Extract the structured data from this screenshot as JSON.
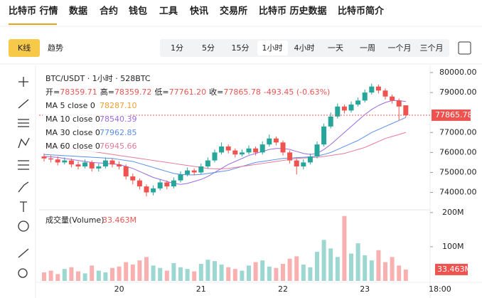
{
  "nav": {
    "items": [
      "比特币 行情",
      "数据",
      "合约",
      "钱包",
      "工具",
      "快讯",
      "交易所",
      "比特币 历史数据",
      "比特币简介"
    ]
  },
  "toolbar": {
    "tabs": [
      "K线",
      "趋势"
    ],
    "intervals": [
      "1分",
      "5分",
      "15分",
      "1小时",
      "4小时",
      "一天",
      "一周",
      "一个月",
      "三个月"
    ]
  },
  "chart_data": {
    "type": "candlestick",
    "title": "BTC/USDT · 1小时 · 528BTC",
    "ohlc_header": [
      {
        "label": "开=",
        "value": "78359.71"
      },
      {
        "label": "高=",
        "value": "78359.72"
      },
      {
        "label": "低=",
        "value": "77761.20"
      },
      {
        "label": "收=",
        "value": "77865.78"
      }
    ],
    "change": "-493.45 (-0.63%)",
    "categories": [
      null,
      null,
      null,
      null,
      null,
      null,
      null,
      null,
      null,
      null,
      null,
      "20",
      null,
      null,
      null,
      null,
      null,
      null,
      null,
      null,
      null,
      null,
      null,
      "21",
      null,
      null,
      null,
      null,
      null,
      null,
      null,
      null,
      null,
      null,
      null,
      "22",
      null,
      null,
      null,
      null,
      null,
      null,
      null,
      null,
      null,
      null,
      null,
      "23",
      null,
      null,
      null,
      null,
      null,
      null
    ],
    "time_label": "18:00",
    "open": [
      75800,
      75700,
      75650,
      75500,
      75600,
      75400,
      75300,
      75500,
      75200,
      75300,
      75600,
      75400,
      75300,
      74800,
      74600,
      74300,
      74000,
      74200,
      74500,
      74300,
      74600,
      74900,
      75100,
      75000,
      75300,
      75600,
      76000,
      76300,
      76100,
      75900,
      76000,
      76200,
      76000,
      76400,
      76700,
      76500,
      76000,
      75600,
      75300,
      75500,
      75800,
      76400,
      77300,
      77800,
      78300,
      78100,
      78400,
      78600,
      79000,
      79300,
      79100,
      78800,
      78600,
      78359.71
    ],
    "high": [
      75950,
      75850,
      75800,
      75750,
      75700,
      75550,
      75650,
      75600,
      75450,
      75750,
      75700,
      75550,
      75400,
      74950,
      74700,
      74400,
      74350,
      74650,
      74600,
      74750,
      75050,
      75250,
      75200,
      75450,
      75750,
      76150,
      76500,
      76400,
      76200,
      76150,
      76350,
      76300,
      76550,
      76900,
      76800,
      76600,
      76100,
      75700,
      75650,
      75950,
      76550,
      77450,
      78000,
      78450,
      78400,
      78550,
      78750,
      79150,
      79450,
      79400,
      79200,
      78900,
      78700,
      78359.72
    ],
    "low": [
      75550,
      75500,
      75350,
      75400,
      75250,
      75150,
      75200,
      75050,
      75050,
      75200,
      75250,
      75150,
      74650,
      74400,
      74150,
      73800,
      73850,
      74100,
      74150,
      74200,
      74500,
      74800,
      74850,
      74900,
      75200,
      75500,
      75900,
      75950,
      75750,
      75800,
      75900,
      75850,
      75900,
      76300,
      76350,
      75850,
      75450,
      74900,
      75150,
      75400,
      75700,
      76300,
      77200,
      77700,
      77950,
      78000,
      78300,
      78500,
      78900,
      78950,
      78650,
      78450,
      77600,
      77761.2
    ],
    "close": [
      75700,
      75650,
      75500,
      75600,
      75400,
      75300,
      75500,
      75200,
      75300,
      75600,
      75400,
      75300,
      74800,
      74600,
      74300,
      74000,
      74200,
      74500,
      74300,
      74600,
      74900,
      75100,
      75000,
      75300,
      75600,
      76000,
      76300,
      76100,
      75900,
      76000,
      76200,
      76000,
      76400,
      76700,
      76500,
      76000,
      75600,
      75300,
      75500,
      75800,
      76400,
      77300,
      77800,
      78300,
      78100,
      78400,
      78600,
      79000,
      79300,
      79100,
      78800,
      78600,
      78300,
      77865.78
    ],
    "up_color": "#26a69a",
    "down_color": "#ef5350",
    "last_price": {
      "value": 77865.78,
      "label": "77865.78"
    },
    "ylim": [
      73200,
      80250
    ],
    "yticks": [
      {
        "value": 80000,
        "label": "80000.00"
      },
      {
        "value": 79000,
        "label": "79000.00"
      },
      {
        "value": 77000,
        "label": "77000.00"
      },
      {
        "value": 76000,
        "label": "76000.00"
      },
      {
        "value": 75000,
        "label": "75000.00"
      },
      {
        "value": 74000,
        "label": "74000.00"
      }
    ],
    "ma": [
      {
        "name": "MA 5 close 0",
        "last": "78287.10",
        "color": "#f0a030",
        "values": null
      },
      {
        "name": "MA 10 close 0",
        "last": "78540.39",
        "color": "#9c6ade",
        "values": [
          75800,
          75780,
          75750,
          75700,
          75650,
          75600,
          75550,
          75500,
          75480,
          75450,
          75420,
          75400,
          75300,
          75200,
          75050,
          74900,
          74750,
          74650,
          74550,
          74450,
          74400,
          74450,
          74550,
          74650,
          74800,
          75000,
          75200,
          75400,
          75550,
          75700,
          75850,
          75950,
          76050,
          76150,
          76200,
          76200,
          76150,
          76050,
          75950,
          75900,
          75950,
          76150,
          76400,
          76700,
          77000,
          77300,
          77600,
          77900,
          78150,
          78350,
          78500,
          78600,
          78600,
          78550
        ]
      },
      {
        "name": "MA 30 close 0",
        "last": "77962.85",
        "color": "#5b8fe8",
        "values": [
          75900,
          75880,
          75860,
          75840,
          75820,
          75800,
          75780,
          75760,
          75740,
          75720,
          75700,
          75650,
          75600,
          75550,
          75450,
          75350,
          75250,
          75150,
          75050,
          74950,
          74900,
          74880,
          74880,
          74900,
          74950,
          75000,
          75050,
          75100,
          75200,
          75300,
          75400,
          75500,
          75550,
          75600,
          75650,
          75700,
          75720,
          75740,
          75760,
          75780,
          75820,
          75900,
          76000,
          76150,
          76300,
          76450,
          76600,
          76800,
          77000,
          77150,
          77300,
          77450,
          77600,
          77750
        ]
      },
      {
        "name": "MA 60 close 0",
        "last": "76945.66",
        "color": "#e57a9a",
        "values": [
          76300,
          76280,
          76250,
          76220,
          76200,
          76150,
          76100,
          76050,
          76000,
          75950,
          75900,
          75850,
          75800,
          75750,
          75700,
          75650,
          75600,
          75550,
          75500,
          75450,
          75400,
          75350,
          75300,
          75250,
          75200,
          75180,
          75180,
          75200,
          75250,
          75300,
          75350,
          75400,
          75450,
          75500,
          75550,
          75600,
          75650,
          75700,
          75720,
          75740,
          75760,
          75800,
          75850,
          75900,
          75950,
          76050,
          76150,
          76250,
          76400,
          76550,
          76700,
          76800,
          76900,
          77000
        ]
      }
    ],
    "volume": {
      "title": "成交量(Volume)",
      "last": {
        "value": 33.463,
        "label": "33.463M"
      },
      "values": [
        25,
        30,
        20,
        35,
        40,
        28,
        22,
        45,
        30,
        25,
        38,
        42,
        55,
        48,
        60,
        70,
        45,
        38,
        30,
        52,
        40,
        35,
        28,
        50,
        62,
        58,
        48,
        40,
        35,
        30,
        45,
        55,
        60,
        42,
        38,
        50,
        65,
        72,
        48,
        40,
        85,
        120,
        95,
        70,
        190,
        80,
        110,
        75,
        60,
        90,
        55,
        70,
        45,
        33.463
      ],
      "ylim": [
        0,
        208
      ],
      "yticks": [
        {
          "value": 200,
          "label": "200M"
        },
        {
          "value": 100,
          "label": "100M"
        }
      ]
    }
  }
}
